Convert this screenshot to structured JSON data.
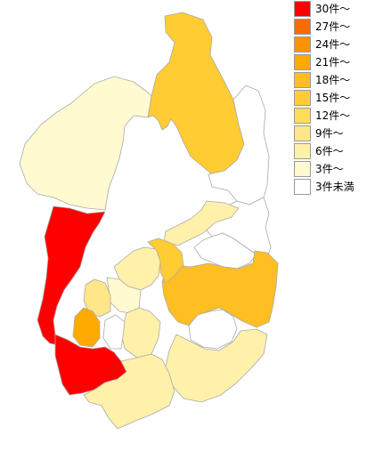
{
  "legend": {
    "items": [
      {
        "label": "30件～",
        "color": "#ff0000"
      },
      {
        "label": "27件～",
        "color": "#ff6a00"
      },
      {
        "label": "24件～",
        "color": "#ff9200"
      },
      {
        "label": "21件～",
        "color": "#ffaa00"
      },
      {
        "label": "18件～",
        "color": "#ffbe22"
      },
      {
        "label": "15件～",
        "color": "#ffcc33"
      },
      {
        "label": "12件～",
        "color": "#ffdd55"
      },
      {
        "label": "9件～",
        "color": "#ffe688"
      },
      {
        "label": "6件～",
        "color": "#fff0aa"
      },
      {
        "label": "3件～",
        "color": "#fffad0"
      },
      {
        "label": "3件未満",
        "color": "#ffffff"
      }
    ]
  },
  "regions": {
    "north_east": {
      "level": 5
    },
    "north_west": {
      "level": 9
    },
    "west": {
      "level": 0
    },
    "far_east_strip": {
      "level": 10
    },
    "upper_east": {
      "level": 10
    },
    "mid_east_band": {
      "level": 8
    },
    "east_small_white": {
      "level": 10
    },
    "east_central": {
      "level": 4
    },
    "east_inner_hole": {
      "level": 10
    },
    "central_a": {
      "level": 8
    },
    "central_b": {
      "level": 5
    },
    "central_c": {
      "level": 9
    },
    "small_center": {
      "level": 7
    },
    "small_west": {
      "level": 3
    },
    "south_west": {
      "level": 0
    },
    "south_inner_a": {
      "level": 8
    },
    "south_inner_b": {
      "level": 10
    },
    "south_east": {
      "level": 8
    },
    "south_big": {
      "level": 8
    }
  }
}
